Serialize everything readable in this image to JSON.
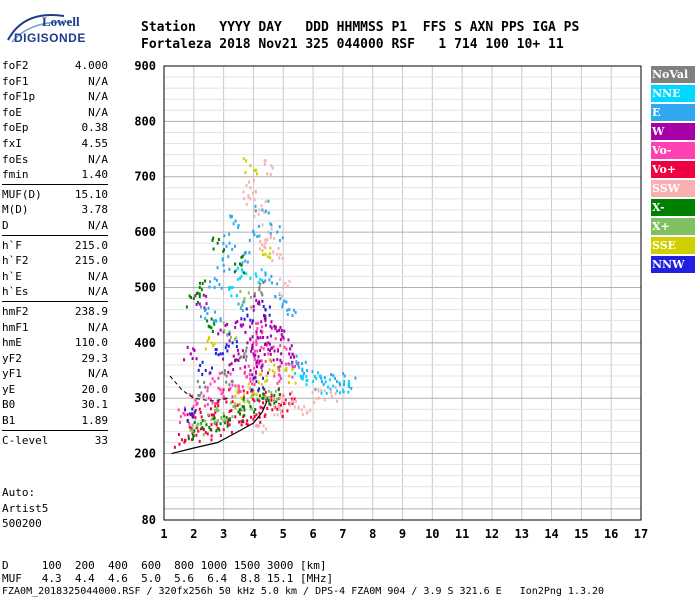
{
  "logo": {
    "line1": "Lowell",
    "line2": "DIGISONDE"
  },
  "header": {
    "line1": "Station   YYYY DAY   DDD HHMMSS P1  FFS S AXN PPS IGA PS",
    "line2": "Fortaleza 2018 Nov21 325 044000 RSF   1 714 100 10+ 11"
  },
  "params": [
    {
      "k": "foF2",
      "v": "4.000"
    },
    {
      "k": "foF1",
      "v": "N/A"
    },
    {
      "k": "foF1p",
      "v": "N/A"
    },
    {
      "k": "foE",
      "v": "N/A"
    },
    {
      "k": "foEp",
      "v": "0.38"
    },
    {
      "k": "fxI",
      "v": "4.55"
    },
    {
      "k": "foEs",
      "v": "N/A"
    },
    {
      "k": "fmin",
      "v": "1.40"
    },
    {
      "k": "MUF(D)",
      "v": "15.10"
    },
    {
      "k": "M(D)",
      "v": "3.78"
    },
    {
      "k": "D",
      "v": "N/A"
    },
    {
      "k": "h`F",
      "v": "215.0"
    },
    {
      "k": "h`F2",
      "v": "215.0"
    },
    {
      "k": "h`E",
      "v": "N/A"
    },
    {
      "k": "h`Es",
      "v": "N/A"
    },
    {
      "k": "hmF2",
      "v": "238.9"
    },
    {
      "k": "hmF1",
      "v": "N/A"
    },
    {
      "k": "hmE",
      "v": "110.0"
    },
    {
      "k": "yF2",
      "v": "29.3"
    },
    {
      "k": "yF1",
      "v": "N/A"
    },
    {
      "k": "yE",
      "v": "20.0"
    },
    {
      "k": "B0",
      "v": "30.1"
    },
    {
      "k": "B1",
      "v": "1.89"
    },
    {
      "k": "C-level",
      "v": "33"
    }
  ],
  "auto": {
    "line1": "Auto:",
    "line2": "Artist5",
    "line3": "500200"
  },
  "footer": {
    "line1": "D     100  200  400  600  800 1000 1500 3000 [km]",
    "line2": "MUF   4.3  4.4  4.6  5.0  5.6  6.4  8.8 15.1 [MHz]",
    "line3": "FZA0M_2018325044000.RSF / 320fx256h 50 kHz 5.0 km / DPS-4 FZA0M 904 / 3.9 S 321.6 E   Ion2Png 1.3.20"
  },
  "legend": [
    {
      "label": "NoVal",
      "color": "#808080"
    },
    {
      "label": "NNE",
      "color": "#00d8ff"
    },
    {
      "label": "E",
      "color": "#30a8f0"
    },
    {
      "label": "W",
      "color": "#a800a8"
    },
    {
      "label": "Vo-",
      "color": "#ff40b0"
    },
    {
      "label": "Vo+",
      "color": "#f00040"
    },
    {
      "label": "SSW",
      "color": "#f8b0b0"
    },
    {
      "label": "X-",
      "color": "#008000"
    },
    {
      "label": "X+",
      "color": "#80c060"
    },
    {
      "label": "SSE",
      "color": "#d0d000"
    },
    {
      "label": "NNW",
      "color": "#2020e0"
    }
  ],
  "chart_data": {
    "type": "scatter",
    "xlabel": "",
    "ylabel": "",
    "xlim": [
      1,
      17
    ],
    "ylim": [
      80,
      900
    ],
    "xticks": [
      "1",
      "2",
      "3",
      "4",
      "5",
      "6",
      "7",
      "8",
      "9",
      "10",
      "11",
      "12",
      "13",
      "14",
      "15",
      "16",
      "17"
    ],
    "yticks": [
      {
        "value": 200,
        "label": "200"
      },
      {
        "value": 300,
        "label": "300"
      },
      {
        "value": 400,
        "label": "400"
      },
      {
        "value": 500,
        "label": "500"
      },
      {
        "value": 600,
        "label": "600"
      },
      {
        "value": 700,
        "label": "700"
      },
      {
        "value": 800,
        "label": "800"
      },
      {
        "value": 900,
        "label": "900"
      },
      {
        "value": 80,
        "label": "80"
      }
    ],
    "grid": true,
    "series": [
      {
        "color": "#f00040",
        "points": [
          [
            1.6,
            225
          ],
          [
            2.0,
            232
          ],
          [
            2.4,
            238
          ],
          [
            2.8,
            245
          ],
          [
            3.2,
            252
          ],
          [
            3.6,
            258
          ],
          [
            4.0,
            262
          ],
          [
            4.4,
            270
          ],
          [
            4.8,
            280
          ],
          [
            5.2,
            290
          ],
          [
            2.2,
            280
          ],
          [
            3.0,
            300
          ],
          [
            3.8,
            310
          ],
          [
            4.5,
            300
          ],
          [
            1.8,
            260
          ],
          [
            2.6,
            270
          ],
          [
            3.4,
            285
          ],
          [
            4.2,
            295
          ],
          [
            5.0,
            305
          ]
        ]
      },
      {
        "color": "#ff40b0",
        "points": [
          [
            1.7,
            270
          ],
          [
            2.1,
            290
          ],
          [
            2.5,
            300
          ],
          [
            2.9,
            315
          ],
          [
            3.3,
            330
          ],
          [
            3.7,
            345
          ],
          [
            4.1,
            360
          ],
          [
            4.5,
            380
          ],
          [
            4.9,
            395
          ],
          [
            5.3,
            365
          ],
          [
            3.9,
            330
          ],
          [
            4.7,
            340
          ],
          [
            5.1,
            350
          ],
          [
            4.3,
            420
          ],
          [
            4.0,
            400
          ],
          [
            3.5,
            310
          ],
          [
            2.7,
            330
          ]
        ]
      },
      {
        "color": "#a800a8",
        "points": [
          [
            3.2,
            360
          ],
          [
            3.5,
            380
          ],
          [
            3.8,
            400
          ],
          [
            4.1,
            420
          ],
          [
            4.4,
            440
          ],
          [
            4.7,
            430
          ],
          [
            5.0,
            410
          ],
          [
            4.2,
            470
          ],
          [
            4.5,
            400
          ],
          [
            3.9,
            350
          ],
          [
            4.8,
            370
          ],
          [
            5.2,
            380
          ],
          [
            4.0,
            380
          ],
          [
            3.6,
            430
          ],
          [
            4.3,
            360
          ],
          [
            4.6,
            390
          ],
          [
            1.9,
            380
          ],
          [
            2.2,
            470
          ],
          [
            3.0,
            420
          ]
        ]
      },
      {
        "color": "#30a8f0",
        "points": [
          [
            2.4,
            460
          ],
          [
            2.7,
            500
          ],
          [
            3.0,
            540
          ],
          [
            3.2,
            580
          ],
          [
            3.4,
            620
          ],
          [
            3.7,
            560
          ],
          [
            4.0,
            600
          ],
          [
            4.3,
            640
          ],
          [
            4.6,
            520
          ],
          [
            5.5,
            360
          ],
          [
            5.8,
            350
          ],
          [
            6.3,
            330
          ],
          [
            6.8,
            330
          ],
          [
            7.2,
            325
          ],
          [
            4.9,
            480
          ],
          [
            5.2,
            460
          ],
          [
            2.9,
            440
          ],
          [
            3.5,
            470
          ],
          [
            4.8,
            600
          ]
        ]
      },
      {
        "color": "#00d8ff",
        "points": [
          [
            5.6,
            340
          ],
          [
            6.0,
            330
          ],
          [
            6.5,
            320
          ],
          [
            7.0,
            315
          ],
          [
            3.3,
            500
          ],
          [
            3.6,
            520
          ],
          [
            4.1,
            520
          ]
        ]
      },
      {
        "color": "#f8b0b0",
        "points": [
          [
            4.2,
            640
          ],
          [
            4.5,
            600
          ],
          [
            4.8,
            560
          ],
          [
            3.9,
            680
          ],
          [
            4.6,
            720
          ],
          [
            5.0,
            500
          ],
          [
            4.9,
            300
          ],
          [
            5.3,
            295
          ],
          [
            5.7,
            285
          ],
          [
            6.2,
            300
          ],
          [
            6.6,
            310
          ],
          [
            4.7,
            270
          ],
          [
            4.2,
            250
          ],
          [
            3.9,
            660
          ],
          [
            4.4,
            580
          ]
        ]
      },
      {
        "color": "#008000",
        "points": [
          [
            2.0,
            240
          ],
          [
            2.3,
            245
          ],
          [
            2.7,
            255
          ],
          [
            3.1,
            265
          ],
          [
            3.5,
            275
          ],
          [
            3.9,
            285
          ],
          [
            4.3,
            300
          ],
          [
            4.7,
            305
          ],
          [
            2.5,
            430
          ],
          [
            2.2,
            500
          ],
          [
            2.8,
            580
          ],
          [
            3.6,
            540
          ],
          [
            2.0,
            480
          ]
        ]
      },
      {
        "color": "#80c060",
        "points": [
          [
            2.1,
            250
          ],
          [
            2.6,
            262
          ],
          [
            3.0,
            272
          ],
          [
            3.4,
            282
          ],
          [
            3.8,
            295
          ],
          [
            4.6,
            310
          ],
          [
            3.2,
            420
          ],
          [
            3.7,
            480
          ]
        ]
      },
      {
        "color": "#d0d000",
        "points": [
          [
            3.6,
            300
          ],
          [
            4.0,
            310
          ],
          [
            4.4,
            330
          ],
          [
            4.7,
            360
          ],
          [
            2.6,
            400
          ],
          [
            3.9,
            720
          ],
          [
            4.4,
            560
          ],
          [
            5.2,
            340
          ]
        ]
      },
      {
        "color": "#2020e0",
        "points": [
          [
            2.9,
            380
          ],
          [
            3.3,
            400
          ],
          [
            3.8,
            450
          ],
          [
            4.1,
            330
          ],
          [
            2.4,
            350
          ],
          [
            4.4,
            460
          ],
          [
            1.9,
            270
          ]
        ]
      },
      {
        "color": "#808080",
        "points": [
          [
            2.2,
            320
          ],
          [
            3.1,
            340
          ],
          [
            3.7,
            380
          ],
          [
            4.2,
            500
          ]
        ]
      }
    ],
    "trace": [
      [
        1.25,
        200
      ],
      [
        2,
        210
      ],
      [
        2.8,
        220
      ],
      [
        3.5,
        240
      ],
      [
        4.0,
        255
      ],
      [
        4.3,
        275
      ],
      [
        4.45,
        295
      ]
    ],
    "trace_dashed": [
      [
        1.2,
        340
      ],
      [
        1.6,
        315
      ],
      [
        2.0,
        300
      ],
      [
        2.6,
        295
      ],
      [
        3.2,
        300
      ]
    ]
  }
}
